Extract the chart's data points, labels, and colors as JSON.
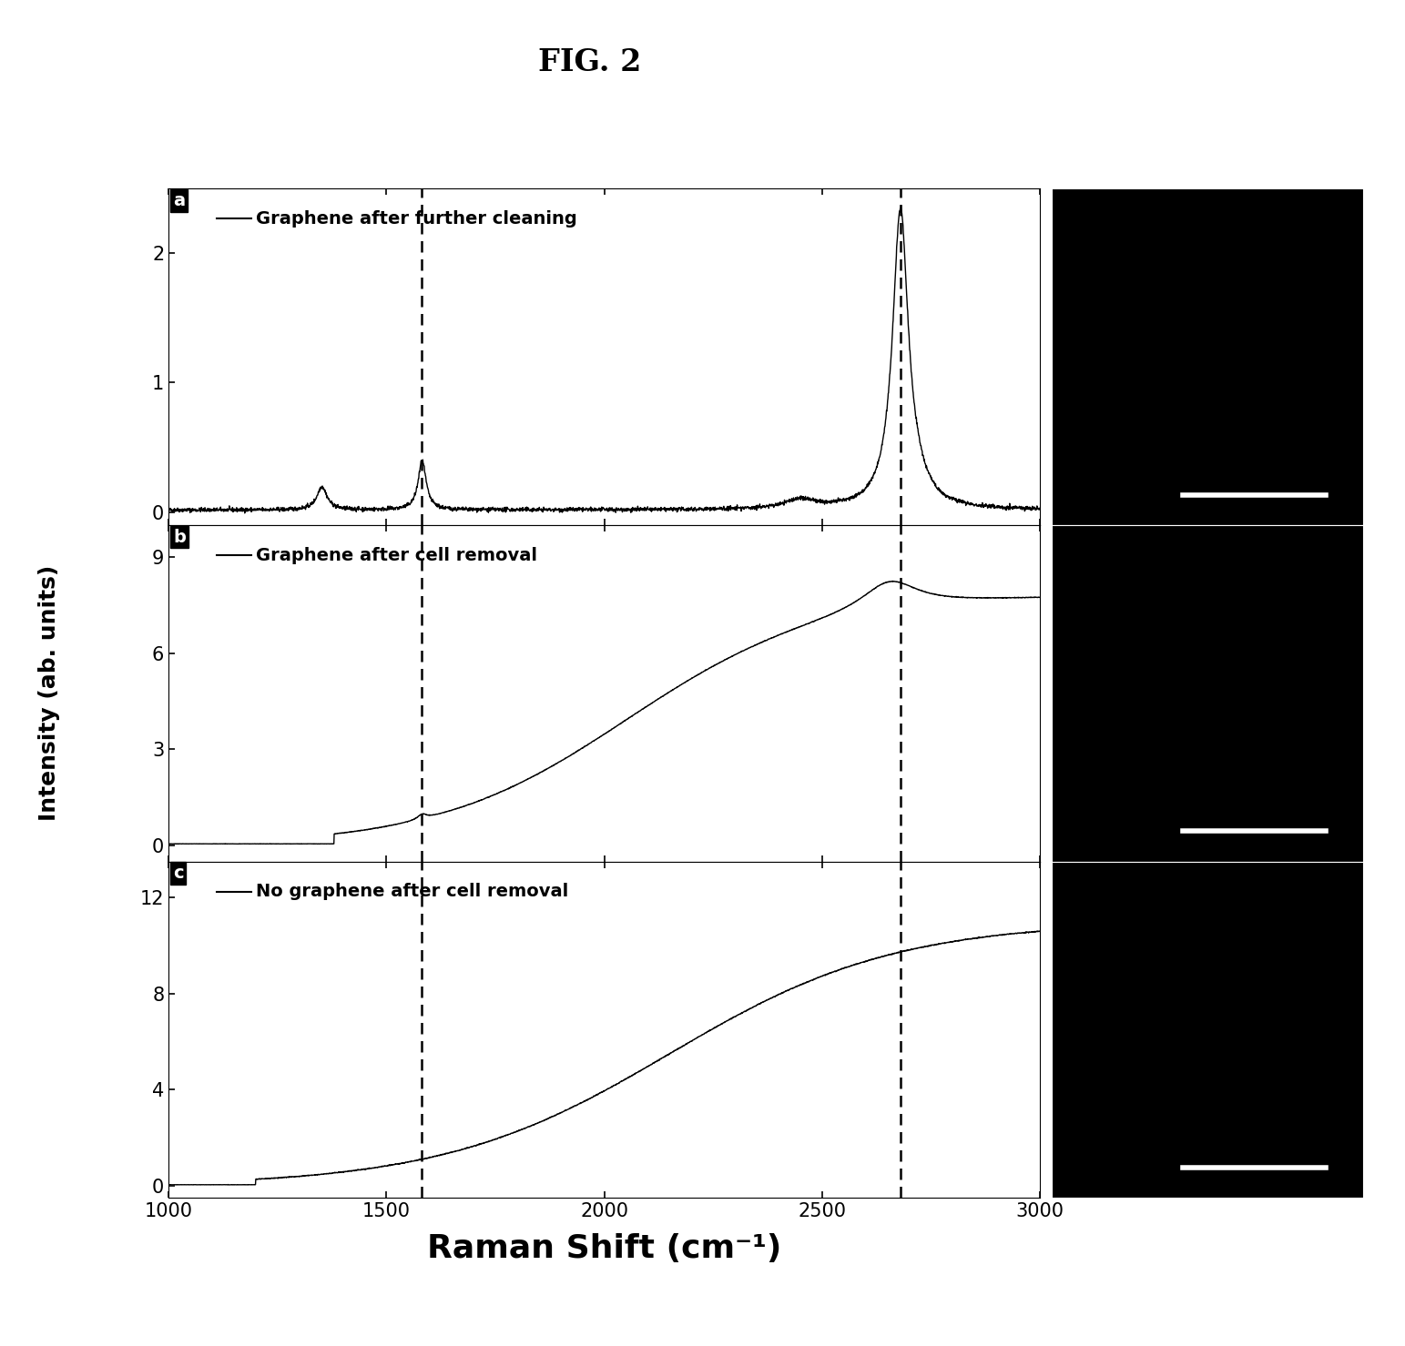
{
  "title": "FIG. 2",
  "xlabel": "Raman Shift (cm⁻¹)",
  "ylabel": "Intensity (ab. units)",
  "xmin": 1000,
  "xmax": 3000,
  "xticks": [
    1000,
    1500,
    2000,
    2500,
    3000
  ],
  "dashed_lines": [
    1580,
    2680
  ],
  "panels": [
    {
      "label": "a",
      "legend": "Graphene after further cleaning",
      "ymin": -0.1,
      "ymax": 2.5,
      "yticks": [
        0,
        1,
        2
      ]
    },
    {
      "label": "b",
      "legend": "Graphene after cell removal",
      "ymin": -0.5,
      "ymax": 10.0,
      "yticks": [
        0,
        3,
        6,
        9
      ]
    },
    {
      "label": "c",
      "legend": "No graphene after cell removal",
      "ymin": -0.5,
      "ymax": 13.5,
      "yticks": [
        0,
        4,
        8,
        12
      ]
    }
  ],
  "background_color": "#ffffff",
  "line_color": "#000000",
  "image_bg": "#000000",
  "title_fontsize": 24,
  "label_fontsize": 16,
  "tick_fontsize": 15,
  "legend_fontsize": 14,
  "xlabel_fontsize": 26,
  "ylabel_fontsize": 18
}
